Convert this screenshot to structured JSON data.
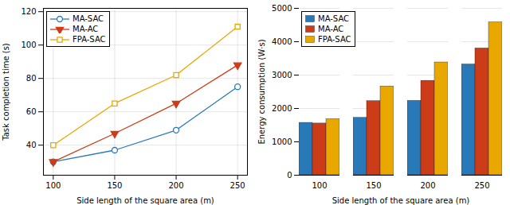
{
  "chart_data": [
    {
      "type": "line",
      "x": [
        100,
        150,
        200,
        250
      ],
      "xlabel": "Side length of the square area (m)",
      "ylabel": "Task completion time (s)",
      "xlim": [
        92,
        258
      ],
      "xticks": [
        100,
        150,
        200,
        250
      ],
      "ylim": [
        22,
        122
      ],
      "yticks": [
        40,
        60,
        80,
        100,
        120
      ],
      "grid": true,
      "legend": "upper left",
      "series": [
        {
          "name": "MA-SAC",
          "color": "#2979b9",
          "marker": "circle",
          "values": [
            30,
            37,
            49,
            75
          ]
        },
        {
          "name": "MA-AC",
          "color": "#cc3c18",
          "marker": "triangle_down",
          "values": [
            30,
            47,
            65,
            88
          ]
        },
        {
          "name": "FPA-SAC",
          "color": "#e8a800",
          "marker": "square",
          "values": [
            40,
            65,
            82,
            111
          ]
        }
      ]
    },
    {
      "type": "bar",
      "categories": [
        "100",
        "150",
        "200",
        "250"
      ],
      "xlabel": "Side length of the square area (m)",
      "ylabel": "Energy consumption (W·s)",
      "ylim": [
        0,
        5000
      ],
      "yticks": [
        0,
        1000,
        2000,
        3000,
        4000,
        5000
      ],
      "grid": "y",
      "legend": "upper left",
      "series": [
        {
          "name": "MA-SAC",
          "color": "#2979b9",
          "values": [
            1570,
            1720,
            2230,
            3320
          ]
        },
        {
          "name": "MA-AC",
          "color": "#cc3c18",
          "values": [
            1550,
            2220,
            2830,
            3800
          ]
        },
        {
          "name": "FPA-SAC",
          "color": "#e8a800",
          "values": [
            1680,
            2660,
            3380,
            4580
          ]
        }
      ]
    }
  ]
}
